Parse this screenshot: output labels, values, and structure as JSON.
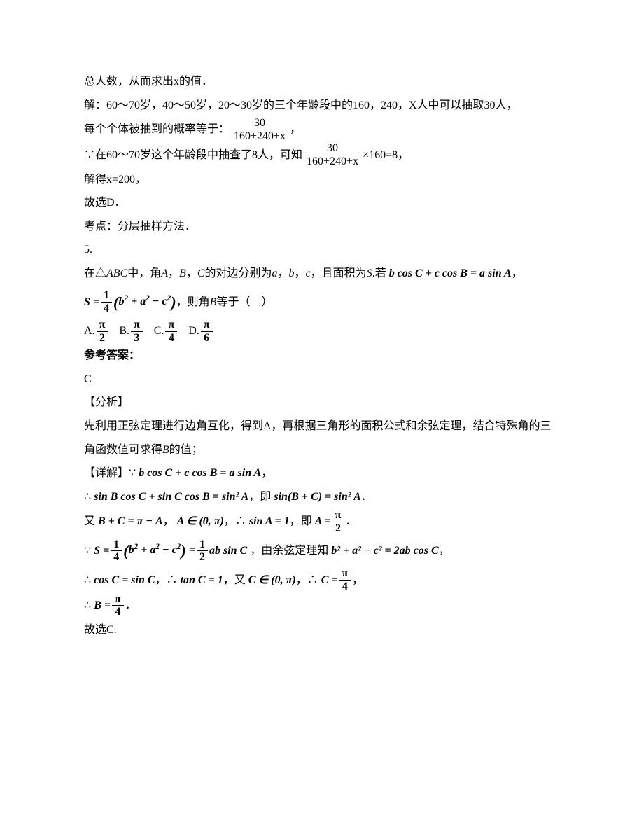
{
  "colors": {
    "text": "#000000",
    "background": "#ffffff"
  },
  "fontsize": 16,
  "l1": "总人数，从而求出x的值．",
  "l2": "解：60～70岁，40～50岁，20～30岁的三个年龄段中的160，240，X人中可以抽取30人，",
  "l3_pre": "每个个体被抽到的概率等于：",
  "frac1_num": "30",
  "frac1_den": "160+240+x",
  "l3_post": "，",
  "l4_pre": "∵在60～70岁这个年龄段中抽查了8人，可知",
  "l4_post": "×160=8，",
  "l5": "解得x=200，",
  "l6": "故选D．",
  "l7": "考点：分层抽样方法．",
  "q5": "5.",
  "q5_l1_a": "在△",
  "q5_l1_b": "ABC",
  "q5_l1_c": "中，角",
  "q5_l1_d": "A",
  "q5_l1_e": "，",
  "q5_l1_f": "B",
  "q5_l1_g": "，",
  "q5_l1_h": "C",
  "q5_l1_i": "的对边分别为",
  "q5_l1_j": "a",
  "q5_l1_k": "，",
  "q5_l1_l": "b",
  "q5_l1_m": "，",
  "q5_l1_n": "c",
  "q5_l1_o": "，且面积为",
  "q5_l1_p": "S",
  "q5_l1_q": ".若",
  "q5_eq1": "b cos C + c cos B = a sin A",
  "q5_comma": "，",
  "q5_S": "S = ",
  "q5_S_frac_num": "1",
  "q5_S_frac_den": "4",
  "q5_S_paren": "(b² + a² − c²)",
  "q5_l2_post": "，则角",
  "q5_l2_B": "B",
  "q5_l2_post2": "等于（　）",
  "optA": "A. ",
  "optA_num": "π",
  "optA_den": "2",
  "optB": "B. ",
  "optB_num": "π",
  "optB_den": "3",
  "optC": "C. ",
  "optC_num": "π",
  "optC_den": "4",
  "optD": "D. ",
  "optD_num": "π",
  "optD_den": "6",
  "ans_label": "参考答案：",
  "ans": "C",
  "analysis_label": "【分析】",
  "analysis_1": "先利用正弦定理进行边角互化，得到A，再根据三角形的面积公式和余弦定理，结合特殊角的三角函数值可求得",
  "analysis_B": "B",
  "analysis_2": "的值；",
  "detail_label": "【详解】",
  "d1_pre": "∵",
  "d1": "b cos C + c cos B = a sin A",
  "d2_pre": "∴",
  "d2_a": "sin B cos C + sin C cos B = sin² A",
  "d2_mid": "，即",
  "d2_b": "sin(B + C) = sin² A",
  "d2_post": "．",
  "d3_pre": "又",
  "d3_a": "B + C = π − A",
  "d3_sep": "，",
  "d3_b": "A ∈ (0, π)",
  "d3_sep2": "，∴",
  "d3_c": "sin A = 1",
  "d3_mid": "，即",
  "d3_d_lhs": "A = ",
  "d3_d_num": "π",
  "d3_d_den": "2",
  "d3_post": "．",
  "d4_pre": "∵",
  "d4_lhs": "S = ",
  "d4_f1_num": "1",
  "d4_f1_den": "4",
  "d4_mid1": "(b² + a² − c²) = ",
  "d4_f2_num": "1",
  "d4_f2_den": "2",
  "d4_mid2": "ab sin C",
  "d4_after": "，由余弦定理知",
  "d4_eq": "b² + a² − c² = 2ab cos C",
  "d4_post": "，",
  "d5_pre": "∴",
  "d5_a": "cos C = sin C",
  "d5_sep": "，∴",
  "d5_b": "tan C = 1",
  "d5_mid": "，又",
  "d5_c": "C ∈ (0, π)",
  "d5_sep2": "，∴",
  "d5_d_lhs": "C = ",
  "d5_d_num": "π",
  "d5_d_den": "4",
  "d5_post": "，",
  "d6_pre": "∴",
  "d6_lhs": "B = ",
  "d6_num": "π",
  "d6_den": "4",
  "d6_post": "．",
  "d7": "故选C."
}
